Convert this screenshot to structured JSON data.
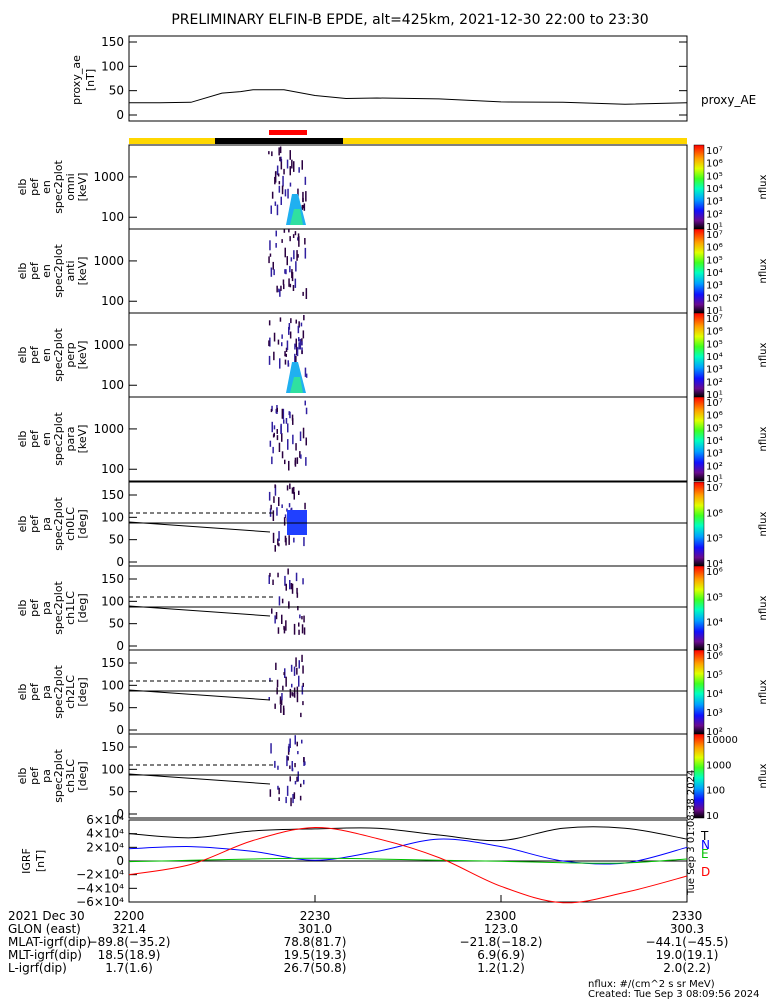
{
  "title": "PRELIMINARY ELFIN-B EPDE, alt=425km, 2021-12-30 22:00 to 23:30",
  "proxy_ae": {
    "ylabel": [
      "proxy_ae",
      "[nT]"
    ],
    "yticks": [
      "150",
      "100",
      "50",
      "0"
    ],
    "legend": "proxy_AE"
  },
  "spec_panels": [
    {
      "lines": [
        "elb",
        "pef",
        "en",
        "spec2plot",
        "omni",
        "[keV]"
      ],
      "yticks": [
        "1000",
        "100"
      ],
      "cb_labels": [
        "10⁷",
        "10⁶",
        "10⁵",
        "10⁴",
        "10³",
        "10²",
        "10¹"
      ],
      "cb_title": "nflux"
    },
    {
      "lines": [
        "elb",
        "pef",
        "en",
        "spec2plot",
        "anti",
        "[keV]"
      ],
      "yticks": [
        "1000",
        "100"
      ],
      "cb_labels": [
        "10⁷",
        "10⁶",
        "10⁵",
        "10⁴",
        "10³",
        "10²",
        "10¹"
      ],
      "cb_title": "nflux"
    },
    {
      "lines": [
        "elb",
        "pef",
        "en",
        "spec2plot",
        "perp",
        "[keV]"
      ],
      "yticks": [
        "1000",
        "100"
      ],
      "cb_labels": [
        "10⁷",
        "10⁶",
        "10⁵",
        "10⁴",
        "10³",
        "10²",
        "10¹"
      ],
      "cb_title": "nflux"
    },
    {
      "lines": [
        "elb",
        "pef",
        "en",
        "spec2plot",
        "para",
        "[keV]"
      ],
      "yticks": [
        "1000",
        "100"
      ],
      "cb_labels": [
        "10⁷",
        "10⁶",
        "10⁵",
        "10⁴",
        "10³",
        "10²",
        "10¹"
      ],
      "cb_title": "nflux"
    }
  ],
  "pa_panels": [
    {
      "lines": [
        "elb",
        "pef",
        "pa",
        "spec2plot",
        "ch0LC",
        "[deg]"
      ],
      "yticks": [
        "150",
        "100",
        "50",
        "0"
      ],
      "cb_labels": [
        "10⁷",
        "10⁶",
        "10⁵",
        "10⁴"
      ],
      "cb_title": "nflux"
    },
    {
      "lines": [
        "elb",
        "pef",
        "pa",
        "spec2plot",
        "ch1LC",
        "[deg]"
      ],
      "yticks": [
        "150",
        "100",
        "50",
        "0"
      ],
      "cb_labels": [
        "10⁶",
        "10⁵",
        "10⁴",
        "10³"
      ],
      "cb_title": "nflux"
    },
    {
      "lines": [
        "elb",
        "pef",
        "pa",
        "spec2plot",
        "ch2LC",
        "[deg]"
      ],
      "yticks": [
        "150",
        "100",
        "50",
        "0"
      ],
      "cb_labels": [
        "10⁶",
        "10⁵",
        "10⁴",
        "10³",
        "10²"
      ],
      "cb_title": "nflux"
    },
    {
      "lines": [
        "elb",
        "pef",
        "pa",
        "spec2plot",
        "ch3LC",
        "[deg]"
      ],
      "yticks": [
        "150",
        "100",
        "50",
        "0"
      ],
      "cb_labels": [
        "10000",
        "1000",
        "100",
        "10"
      ],
      "cb_title": "nflux"
    }
  ],
  "igrf": {
    "ylabel": [
      "IGRF",
      "[nT]"
    ],
    "yticks": [
      "6×10⁴",
      "4×10⁴",
      "2×10⁴",
      "0",
      "−2×10⁴",
      "−4×10⁴",
      "−6×10⁴"
    ],
    "legend": [
      "T",
      "N",
      "E",
      "D"
    ],
    "colors": [
      "#000000",
      "#0000ff",
      "#00c000",
      "#ff0000"
    ]
  },
  "xticks": [
    "2200",
    "2230",
    "2300",
    "2330"
  ],
  "ephem_table": {
    "labels": [
      "2021 Dec 30",
      "GLON (east)",
      "MLAT-igrf(dip)",
      "MLT-igrf(dip)",
      "L-igrf(dip)"
    ],
    "rows": [
      [
        "321.4",
        "301.0",
        "123.0",
        "300.3"
      ],
      [
        "−89.8(−35.2)",
        "78.8(81.7)",
        "−21.8(−18.2)",
        "−44.1(−45.5)"
      ],
      [
        "18.5(18.9)",
        "19.5(19.3)",
        "6.9(6.9)",
        "19.0(19.1)"
      ],
      [
        "1.7(1.6)",
        "26.7(50.8)",
        "1.2(1.2)",
        "2.0(2.2)"
      ]
    ]
  },
  "side_stamp": "Tue Sep  3 01:08:38 2024",
  "footer": {
    "units": "nflux: #/(cm^2 s sr MeV)",
    "created": "Created: Tue Sep  3 08:09:56 2024"
  },
  "chart_data": {
    "type": "line",
    "x_range": [
      "22:00",
      "23:30"
    ],
    "proxy_ae": {
      "ylim": [
        0,
        150
      ],
      "x": [
        0,
        5,
        10,
        15,
        18,
        20,
        25,
        30,
        35,
        40,
        50,
        60,
        70,
        80,
        90
      ],
      "values": [
        25,
        25,
        26,
        45,
        48,
        52,
        52,
        40,
        34,
        35,
        33,
        27,
        26,
        22,
        25
      ]
    },
    "igrf": {
      "ylim": [
        -60000,
        60000
      ],
      "x_minutes": [
        0,
        10,
        20,
        30,
        40,
        50,
        60,
        70,
        80,
        90
      ],
      "series": [
        {
          "name": "T",
          "values": [
            40000,
            34000,
            44000,
            47000,
            48000,
            38000,
            30000,
            48000,
            48000,
            32000
          ]
        },
        {
          "name": "N",
          "values": [
            18000,
            21000,
            14000,
            1000,
            14000,
            32000,
            21000,
            0,
            -3000,
            20000
          ]
        },
        {
          "name": "E",
          "values": [
            -1000,
            1000,
            3000,
            4000,
            3000,
            1000,
            -500,
            -2500,
            -3000,
            3000
          ]
        },
        {
          "name": "D",
          "values": [
            -20000,
            -5000,
            30000,
            49000,
            33000,
            5000,
            -37000,
            -61000,
            -46000,
            -22000
          ]
        }
      ]
    }
  }
}
